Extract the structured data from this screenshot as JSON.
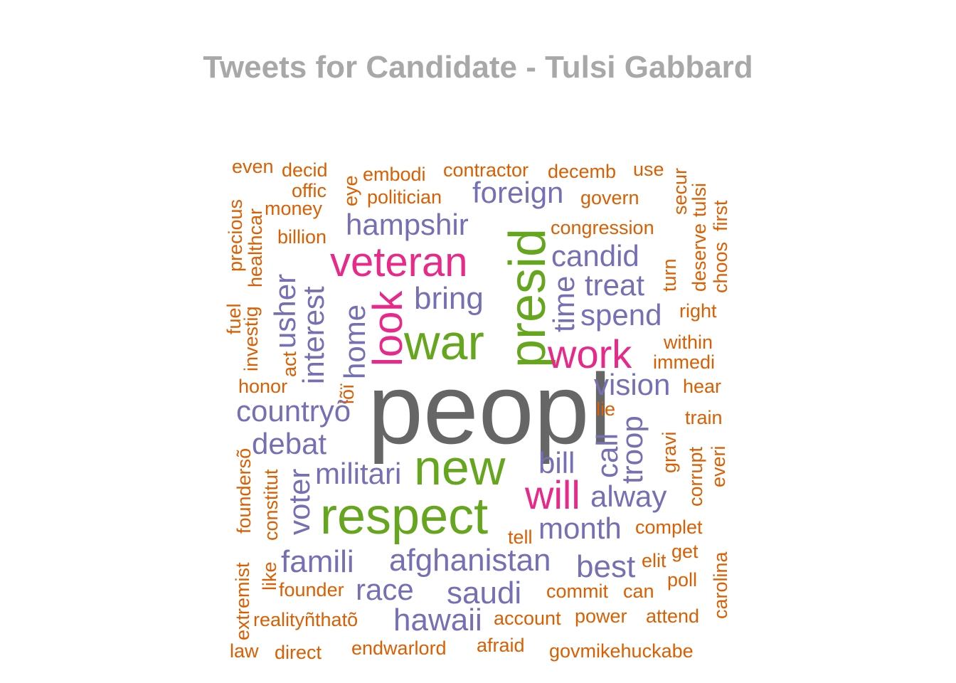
{
  "title": "Tweets for Candidate - Tulsi Gabbard",
  "palette": {
    "orange": "#d95f02",
    "purple": "#7570b3",
    "magenta": "#e7298a",
    "green": "#66a61e",
    "gray": "#666666"
  },
  "words": {
    "peopl": "peopl",
    "new": "new",
    "respect": "respect",
    "war": "war",
    "presid": "presid",
    "look": "look",
    "veteran": "veteran",
    "work": "work",
    "will": "will",
    "foreign": "foreign",
    "hampshir": "hampshir",
    "bring": "bring",
    "candid": "candid",
    "treat": "treat",
    "time": "time",
    "spend": "spend",
    "vision": "vision",
    "countryo": "countryõ",
    "debat": "debat",
    "militari": "militari",
    "bill": "bill",
    "call": "call",
    "troop": "troop",
    "alway": "alway",
    "month": "month",
    "famili": "famili",
    "afghanistan": "afghanistan",
    "best": "best",
    "race": "race",
    "saudi": "saudi",
    "hawaii": "hawaii",
    "usher": "usher",
    "interest": "interest",
    "home": "home",
    "voter": "voter",
    "even": "even",
    "decid": "decid",
    "offic": "offic",
    "money": "money",
    "billion": "billion",
    "embodi": "embodi",
    "politician": "politician",
    "contractor": "contractor",
    "decemb": "decemb",
    "use": "use",
    "govern": "govern",
    "congression": "congression",
    "eye": "eye",
    "precious": "precious",
    "healthcar": "healthcar",
    "secur": "secur",
    "tulsi": "tulsi",
    "first": "first",
    "deserve": "deserve",
    "choos": "choos",
    "turn": "turn",
    "right": "right",
    "within": "within",
    "immedi": "immedi",
    "hear": "hear",
    "fuel": "fuel",
    "investig": "investig",
    "act": "act",
    "honor": "honor",
    "ioi": "iõï",
    "lie": "lie",
    "train": "train",
    "gravi": "gravi",
    "corrupt": "corrupt",
    "everi": "everi",
    "founderso": "foundersõ",
    "constitut": "constitut",
    "tell": "tell",
    "complet": "complet",
    "get": "get",
    "elit": "elit",
    "poll": "poll",
    "extremist": "extremist",
    "like": "like",
    "founder": "founder",
    "commit": "commit",
    "can": "can",
    "carolina": "carolina",
    "realitynthato": "realityñthatõ",
    "account": "account",
    "power": "power",
    "attend": "attend",
    "law": "law",
    "direct": "direct",
    "endwarlord": "endwarlord",
    "afraid": "afraid",
    "govmikehuckabe": "govmikehuckabe"
  }
}
